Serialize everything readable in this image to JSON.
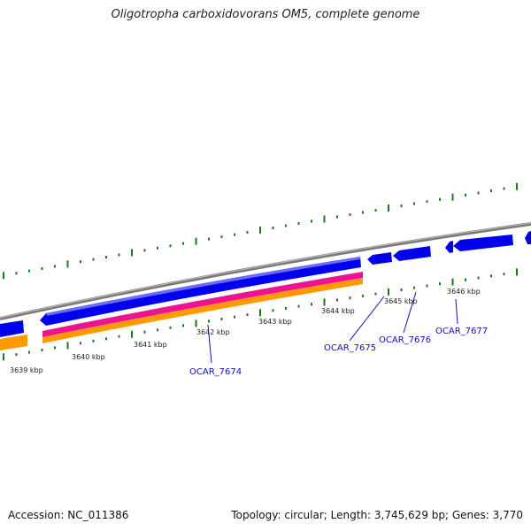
{
  "title": "Oligotropha carboxidovorans OM5, complete genome",
  "ticks": [
    "3639 kbp",
    "3640 kbp",
    "3641 kbp",
    "3642 kbp",
    "3643 kbp",
    "3644 kbp",
    "3645 kbp",
    "3646 kbp"
  ],
  "genes": [
    "OCAR_7674",
    "OCAR_7675",
    "OCAR_7676",
    "OCAR_7677"
  ],
  "colors": {
    "forward_strand": "#0000ee",
    "feature_magenta": "#ee1190",
    "feature_orange": "#ff9900",
    "backbone": "#888888",
    "ticks": "#1a7a1a",
    "gene_label": "#1010b0"
  },
  "footer": {
    "accession": "Accession: NC_011386",
    "summary": "Topology: circular; Length: 3,745,629 bp; Genes: 3,770"
  }
}
